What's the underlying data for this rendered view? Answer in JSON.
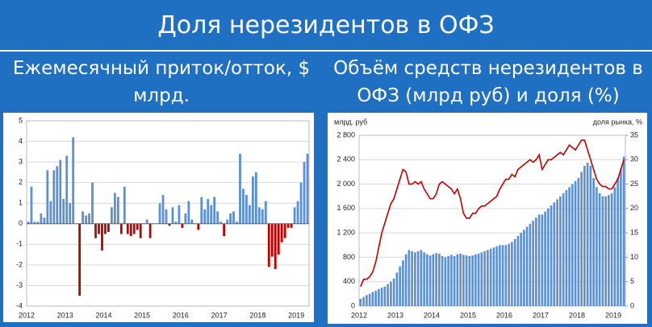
{
  "slide": {
    "title": "Доля нерезидентов в ОФЗ"
  },
  "chart_data": [
    {
      "type": "bar",
      "title": "Ежемесячный приток/отток, $ млрд.",
      "categories": [
        "2012",
        null,
        null,
        null,
        null,
        null,
        null,
        null,
        null,
        null,
        null,
        null,
        "2013",
        null,
        null,
        null,
        null,
        null,
        null,
        null,
        null,
        null,
        null,
        null,
        "2014",
        null,
        null,
        null,
        null,
        null,
        null,
        null,
        null,
        null,
        null,
        null,
        "2015",
        null,
        null,
        null,
        null,
        null,
        null,
        null,
        null,
        null,
        null,
        null,
        "2016",
        null,
        null,
        null,
        null,
        null,
        null,
        null,
        null,
        null,
        null,
        null,
        "2017",
        null,
        null,
        null,
        null,
        null,
        null,
        null,
        null,
        null,
        null,
        null,
        "2018",
        null,
        null,
        null,
        null,
        null,
        null,
        null,
        null,
        null,
        null,
        null,
        "2019",
        null,
        null,
        null
      ],
      "values": [
        0.1,
        1.8,
        0.1,
        0.1,
        0.5,
        0.3,
        2.6,
        1.1,
        2.6,
        2.8,
        3.1,
        1.2,
        3.3,
        1.0,
        4.2,
        0.0,
        -3.5,
        0.6,
        0.4,
        0.5,
        2.0,
        -0.7,
        -0.5,
        -1.3,
        -0.5,
        -0.4,
        0.8,
        1.5,
        1.3,
        -0.5,
        1.8,
        -0.5,
        -0.6,
        -0.5,
        -0.3,
        -0.7,
        0,
        0.2,
        -0.7,
        0,
        0,
        1.0,
        1.4,
        0.7,
        -0.1,
        0.8,
        0.1,
        0.9,
        -0.2,
        0.5,
        1.1,
        0.2,
        0,
        -0.3,
        1.3,
        0.7,
        1.2,
        0.9,
        1.3,
        0.6,
        0.1,
        -0.6,
        0.2,
        0.5,
        0.6,
        0.1,
        3.4,
        1.7,
        1.4,
        0.9,
        2.3,
        2.5,
        0.8,
        0.7,
        1.1,
        -2.1,
        -1.6,
        -2.2,
        -1.5,
        -0.9,
        -0.7,
        -0.2,
        -0.2,
        0.8,
        1.1,
        2.0,
        3.0,
        3.4
      ],
      "colors": {
        "positive": "#5b8fd6",
        "negative": "#c00000"
      },
      "ylim": [
        -4,
        5
      ],
      "yticks": [
        -4,
        -3,
        -2,
        -1,
        0,
        1,
        2,
        3,
        4,
        5
      ],
      "grid": true
    },
    {
      "type": "combo",
      "title": "Объём средств нерезидентов в ОФЗ (млрд руб) и доля (%)",
      "y_label": "млрд. руб",
      "y2_label": "доля рынка, %",
      "categories": [
        "2012",
        null,
        null,
        null,
        null,
        null,
        null,
        null,
        null,
        null,
        null,
        null,
        "2013",
        null,
        null,
        null,
        null,
        null,
        null,
        null,
        null,
        null,
        null,
        null,
        "2014",
        null,
        null,
        null,
        null,
        null,
        null,
        null,
        null,
        null,
        null,
        null,
        "2015",
        null,
        null,
        null,
        null,
        null,
        null,
        null,
        null,
        null,
        null,
        null,
        "2016",
        null,
        null,
        null,
        null,
        null,
        null,
        null,
        null,
        null,
        null,
        null,
        "2017",
        null,
        null,
        null,
        null,
        null,
        null,
        null,
        null,
        null,
        null,
        null,
        "2018",
        null,
        null,
        null,
        null,
        null,
        null,
        null,
        null,
        null,
        null,
        null,
        "2019",
        null,
        null,
        null
      ],
      "series": [
        {
          "type": "bar",
          "color": "#5b8fd6",
          "values": [
            120,
            150,
            180,
            200,
            230,
            250,
            280,
            300,
            320,
            360,
            400,
            450,
            550,
            650,
            750,
            850,
            920,
            900,
            880,
            900,
            920,
            880,
            850,
            830,
            850,
            870,
            860,
            820,
            800,
            820,
            840,
            820,
            850,
            860,
            840,
            830,
            820,
            830,
            850,
            860,
            880,
            900,
            920,
            940,
            960,
            980,
            1000,
            1000,
            1000,
            1020,
            1050,
            1100,
            1150,
            1200,
            1250,
            1300,
            1350,
            1400,
            1450,
            1500,
            1500,
            1550,
            1600,
            1650,
            1700,
            1750,
            1800,
            1850,
            1900,
            1950,
            2000,
            2050,
            2100,
            2200,
            2300,
            2350,
            2300,
            2100,
            1950,
            1850,
            1800,
            1800,
            1820,
            1850,
            1950,
            2100,
            2250,
            2450
          ]
        },
        {
          "type": "line",
          "color": "#c00000",
          "axis": "y2",
          "values": [
            4,
            5.5,
            5.5,
            6,
            7,
            9,
            12,
            15,
            17,
            19,
            21,
            22,
            24,
            26,
            28,
            27.5,
            25,
            25,
            25.5,
            25,
            25.5,
            24,
            23,
            22,
            22,
            23,
            25,
            25.5,
            25,
            24.5,
            24,
            23,
            24,
            22,
            19,
            18,
            18,
            19,
            19,
            20,
            20.5,
            20.5,
            21,
            21.5,
            22,
            22.5,
            24,
            25,
            26,
            26,
            27,
            26.5,
            28,
            28.5,
            29,
            29.5,
            30,
            29.5,
            30,
            31,
            28,
            29,
            30,
            30,
            30.5,
            31,
            31.5,
            31,
            32,
            33,
            32.5,
            32,
            33,
            34,
            34,
            32,
            30,
            28,
            26,
            25,
            24.5,
            24.5,
            24,
            24,
            25,
            26,
            28,
            30
          ]
        }
      ],
      "ylim": [
        0,
        2800
      ],
      "yticks": [
        0,
        400,
        800,
        {
          "value": 1200,
          "label": "1 200"
        },
        {
          "value": 1600,
          "label": "1 600"
        },
        {
          "value": 2000,
          "label": "2 000"
        },
        {
          "value": 2400,
          "label": "2 400"
        },
        {
          "value": 2800,
          "label": "2 800"
        }
      ],
      "y2lim": [
        0,
        35
      ],
      "y2ticks": [
        0,
        5,
        10,
        15,
        20,
        25,
        30,
        35
      ],
      "grid": true
    }
  ]
}
